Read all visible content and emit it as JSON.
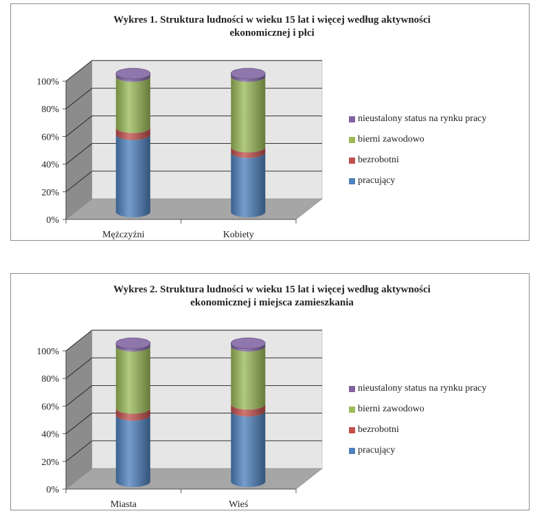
{
  "chart_data": [
    {
      "type": "bar",
      "title": "Wykres 1. Struktura ludności w wieku 15 lat i więcej według aktywności ekonomicznej i płci",
      "title_lines": [
        "Wykres 1. Struktura ludności w wieku 15 lat i więcej według aktywności",
        "ekonomicznej i płci"
      ],
      "categories": [
        "Mężczyźni",
        "Kobiety"
      ],
      "series": [
        {
          "name": "pracujący",
          "values": [
            56,
            43
          ],
          "color": "#4F81BD"
        },
        {
          "name": "bezrobotni",
          "values": [
            5,
            4
          ],
          "color": "#C0504D"
        },
        {
          "name": "bierni zawodowo",
          "values": [
            37,
            51
          ],
          "color": "#9BBB59"
        },
        {
          "name": "nieustalony status na rynku pracy",
          "values": [
            2,
            2
          ],
          "color": "#8064A2"
        }
      ],
      "yticks": [
        "0%",
        "20%",
        "40%",
        "60%",
        "80%",
        "100%"
      ],
      "ylim": [
        0,
        100
      ],
      "stacking": "percent",
      "grid": true,
      "legend_position": "right"
    },
    {
      "type": "bar",
      "title": "Wykres 2. Struktura ludności w wieku 15 lat i więcej według aktywności ekonomicznej i miejsca zamieszkania",
      "title_lines": [
        "Wykres 2. Struktura ludności w wieku 15 lat i więcej według aktywności",
        "ekonomicznej i miejsca zamieszkania"
      ],
      "categories": [
        "Miasta",
        "Wieś"
      ],
      "series": [
        {
          "name": "pracujący",
          "values": [
            48,
            51
          ],
          "color": "#4F81BD"
        },
        {
          "name": "bezrobotni",
          "values": [
            5,
            5
          ],
          "color": "#C0504D"
        },
        {
          "name": "bierni zawodowo",
          "values": [
            45,
            42
          ],
          "color": "#9BBB59"
        },
        {
          "name": "nieustalony status na rynku pracy",
          "values": [
            2,
            2
          ],
          "color": "#8064A2"
        }
      ],
      "yticks": [
        "0%",
        "20%",
        "40%",
        "60%",
        "80%",
        "100%"
      ],
      "ylim": [
        0,
        100
      ],
      "stacking": "percent",
      "grid": true,
      "legend_position": "right"
    }
  ]
}
